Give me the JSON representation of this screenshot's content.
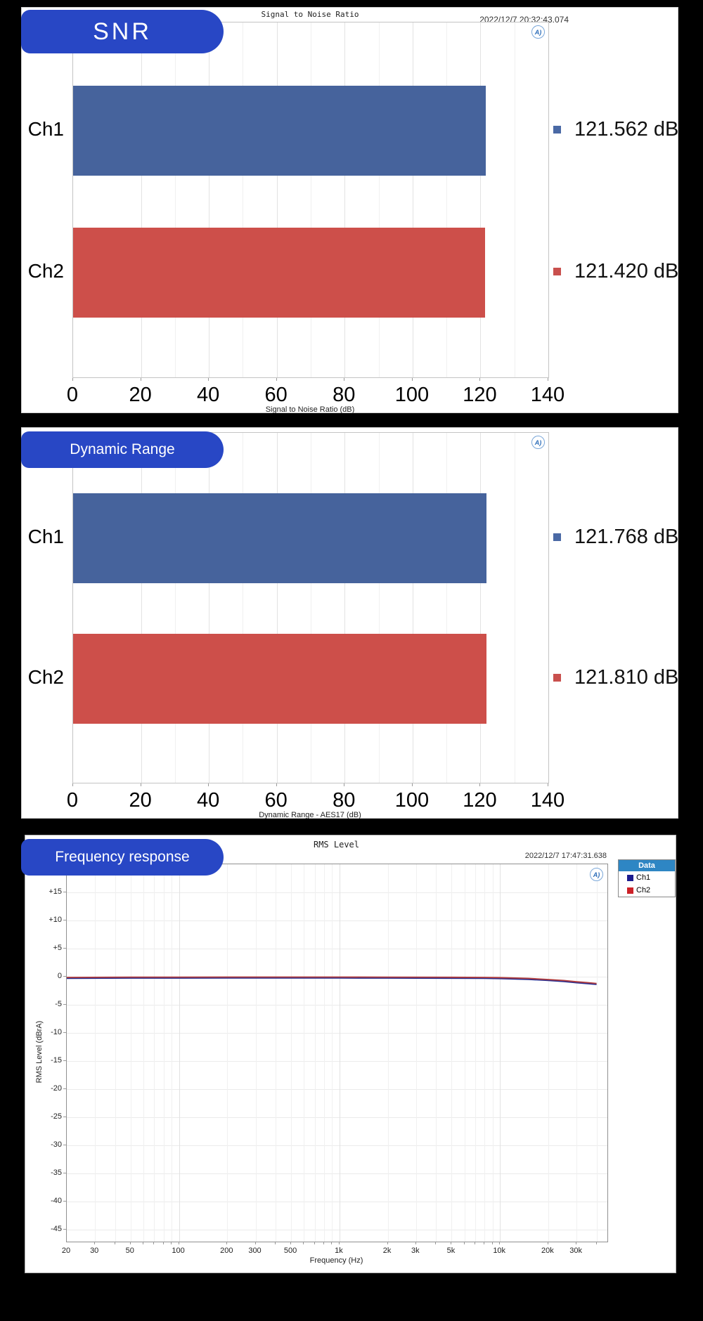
{
  "badges": {
    "snr": "SNR",
    "dynamic_range": "Dynamic Range",
    "frequency_response": "Frequency response"
  },
  "icons": {
    "ap_logo": "A)"
  },
  "colors": {
    "badge_blue": "#2847c5",
    "bar_blue": "#46639c",
    "bar_red": "#cd4f4a",
    "line_navy": "#262c8f",
    "line_red": "#b23d3d",
    "legend_header_blue": "#2e86c4"
  },
  "chart_data": [
    {
      "id": "snr",
      "type": "bar",
      "orientation": "horizontal",
      "title": "Signal to Noise Ratio",
      "timestamp": "2022/12/7 20:32:43.074",
      "categories": [
        "Ch1",
        "Ch2"
      ],
      "values": [
        121.562,
        121.42
      ],
      "value_labels": [
        "121.562 dB",
        "121.420 dB"
      ],
      "bar_colors": [
        "#46639c",
        "#cd4f4a"
      ],
      "marker_colors": [
        "#4a69a5",
        "#c9504d"
      ],
      "xlabel": "Signal to Noise Ratio (dB)",
      "xlim": [
        0,
        140
      ],
      "xticks": [
        "0",
        "20",
        "40",
        "60",
        "80",
        "100",
        "120",
        "140"
      ],
      "grid": true
    },
    {
      "id": "dynamic-range",
      "type": "bar",
      "orientation": "horizontal",
      "title": "",
      "timestamp": "",
      "categories": [
        "Ch1",
        "Ch2"
      ],
      "values": [
        121.768,
        121.81
      ],
      "value_labels": [
        "121.768 dB",
        "121.810 dB"
      ],
      "bar_colors": [
        "#46639c",
        "#cd4f4a"
      ],
      "marker_colors": [
        "#4a69a5",
        "#c9504d"
      ],
      "xlabel": "Dynamic Range - AES17 (dB)",
      "xlim": [
        0,
        140
      ],
      "xticks": [
        "0",
        "20",
        "40",
        "60",
        "80",
        "100",
        "120",
        "140"
      ],
      "grid": true
    },
    {
      "id": "rms-level",
      "type": "line",
      "title": "RMS Level",
      "timestamp": "2022/12/7 17:47:31.638",
      "xlabel": "Frequency (Hz)",
      "ylabel": "RMS Level (dBrA)",
      "xscale": "log",
      "xlim": [
        20,
        46500
      ],
      "ylim": [
        -47.5,
        20
      ],
      "yticks": [
        "+15",
        "+10",
        "+5",
        "0",
        "-5",
        "-10",
        "-15",
        "-20",
        "-25",
        "-30",
        "-35",
        "-40",
        "-45"
      ],
      "xticks": [
        "20",
        "30",
        "50",
        "100",
        "200",
        "300",
        "500",
        "1k",
        "2k",
        "3k",
        "5k",
        "10k",
        "20k",
        "30k"
      ],
      "xtick_values": [
        20,
        30,
        50,
        100,
        200,
        300,
        500,
        1000,
        2000,
        3000,
        5000,
        10000,
        20000,
        30000
      ],
      "grid": true,
      "legend": {
        "header": "Data",
        "items": [
          {
            "label": "Ch1",
            "color": "#1b1b8f"
          },
          {
            "label": "Ch2",
            "color": "#cc2127"
          }
        ]
      },
      "series": [
        {
          "name": "Ch1",
          "color": "#262c8f",
          "points": [
            [
              20,
              -0.12
            ],
            [
              50,
              -0.08
            ],
            [
              100,
              -0.07
            ],
            [
              200,
              -0.06
            ],
            [
              500,
              -0.06
            ],
            [
              1000,
              -0.06
            ],
            [
              2000,
              -0.07
            ],
            [
              5000,
              -0.1
            ],
            [
              8000,
              -0.12
            ],
            [
              10000,
              -0.16
            ],
            [
              15000,
              -0.3
            ],
            [
              20000,
              -0.5
            ],
            [
              25000,
              -0.68
            ],
            [
              30000,
              -0.9
            ],
            [
              35000,
              -1.05
            ],
            [
              40000,
              -1.2
            ]
          ]
        },
        {
          "name": "Ch2",
          "color": "#b23d3d",
          "points": [
            [
              20,
              -0.12
            ],
            [
              50,
              -0.08
            ],
            [
              100,
              -0.07
            ],
            [
              200,
              -0.06
            ],
            [
              500,
              -0.06
            ],
            [
              1000,
              -0.06
            ],
            [
              2000,
              -0.07
            ],
            [
              5000,
              -0.1
            ],
            [
              8000,
              -0.12
            ],
            [
              10000,
              -0.16
            ],
            [
              15000,
              -0.3
            ],
            [
              20000,
              -0.5
            ],
            [
              25000,
              -0.68
            ],
            [
              30000,
              -0.9
            ],
            [
              35000,
              -1.05
            ],
            [
              40000,
              -1.2
            ]
          ]
        }
      ]
    }
  ]
}
